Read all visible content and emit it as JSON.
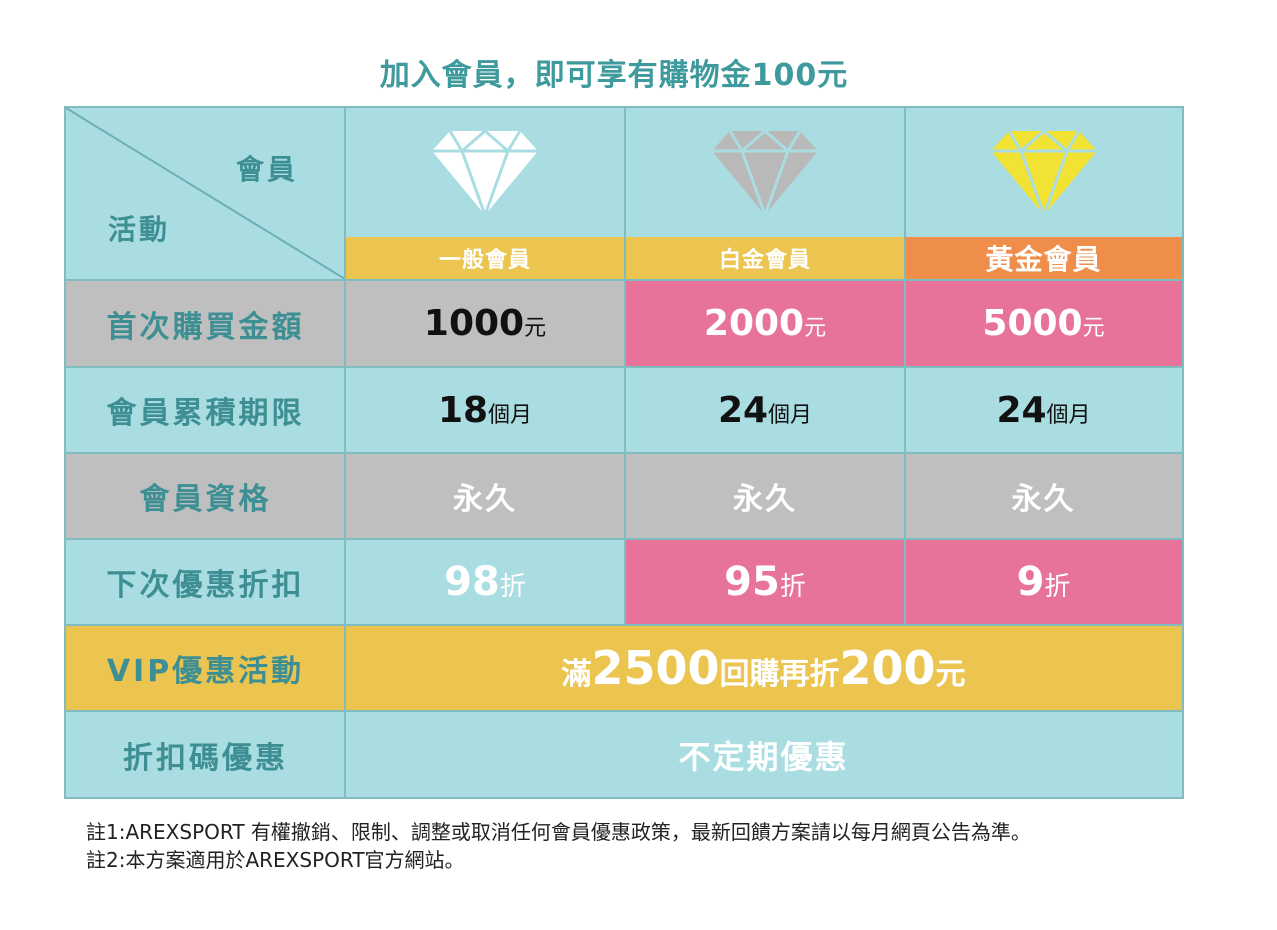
{
  "title": "加入會員，即可享有購物金100元",
  "corner": {
    "member": "會員",
    "activity": "活動"
  },
  "tiers": [
    {
      "name": "一般會員",
      "diamond_color": "#ffffff",
      "label_bg": "#ebc550"
    },
    {
      "name": "白金會員",
      "diamond_color": "#b9b9b9",
      "label_bg": "#ebc550"
    },
    {
      "name": "黃金會員",
      "diamond_color": "#f2e234",
      "label_bg": "#ef8d4a"
    }
  ],
  "rows": [
    {
      "label": "首次購買金額",
      "values": [
        {
          "num": "1000",
          "unit": "元"
        },
        {
          "num": "2000",
          "unit": "元"
        },
        {
          "num": "5000",
          "unit": "元"
        }
      ]
    },
    {
      "label": "會員累積期限",
      "values": [
        {
          "num": "18",
          "unit": "個月"
        },
        {
          "num": "24",
          "unit": "個月"
        },
        {
          "num": "24",
          "unit": "個月"
        }
      ]
    },
    {
      "label": "會員資格",
      "values": [
        {
          "text": "永久"
        },
        {
          "text": "永久"
        },
        {
          "text": "永久"
        }
      ]
    },
    {
      "label": "下次優惠折扣",
      "values": [
        {
          "num": "98",
          "unit": "折"
        },
        {
          "num": "95",
          "unit": "折"
        },
        {
          "num": "9",
          "unit": "折"
        }
      ]
    }
  ],
  "vip": {
    "label": "VIP優惠活動",
    "pre": "滿",
    "n1": "2500",
    "mid": "回購再折",
    "n2": "200",
    "post": "元"
  },
  "coupon": {
    "label": "折扣碼優惠",
    "value": "不定期優惠"
  },
  "notes": [
    "註1:AREXSPORT 有權撤銷、限制、調整或取消任何會員優惠政策，最新回饋方案請以每月網頁公告為準。",
    "註2:本方案適用於AREXSPORT官方網站。"
  ],
  "colors": {
    "teal": "#a9dde2",
    "grey": "#bfbfbf",
    "pink": "#e8739a",
    "gold": "#ebc550",
    "orange": "#ef8d4a",
    "label_text": "#3e8f93"
  }
}
